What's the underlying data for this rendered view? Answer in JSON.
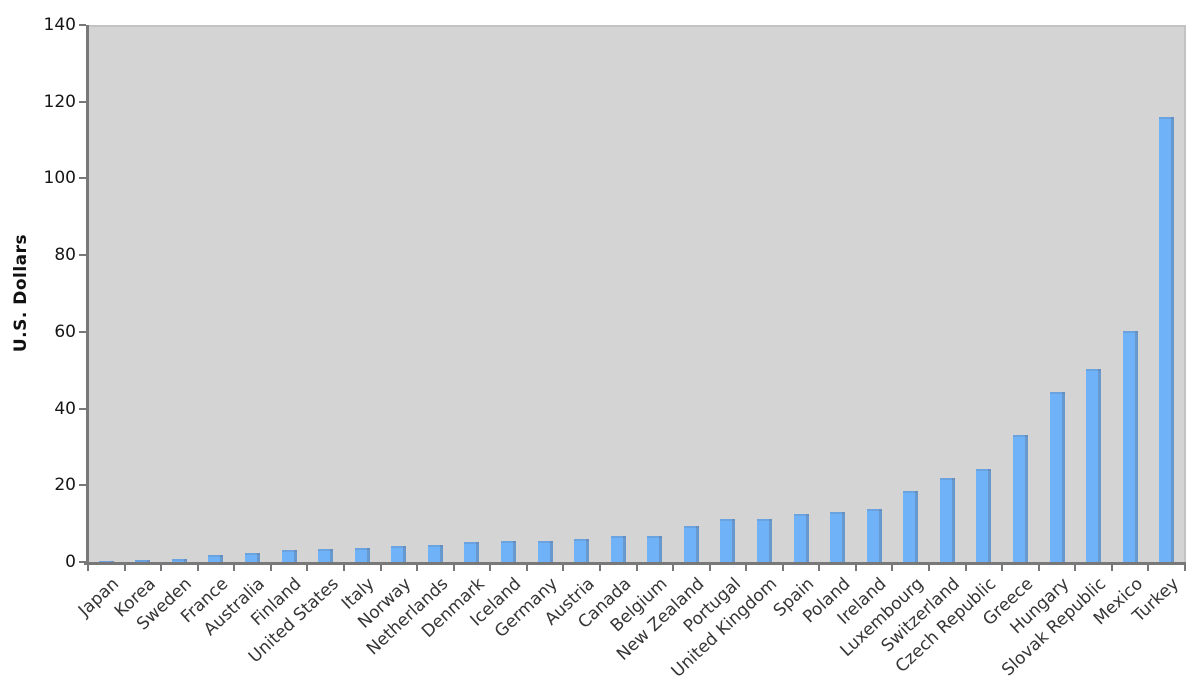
{
  "chart_data": {
    "type": "bar",
    "title": "",
    "xlabel": "",
    "ylabel": "U.S. Dollars",
    "ylim": [
      0,
      140
    ],
    "yticks": [
      0,
      20,
      40,
      60,
      80,
      100,
      120,
      140
    ],
    "grid": false,
    "legend": "none",
    "bar_color": "#6fb2f7",
    "plot_background": "#d4d4d4",
    "axis_color": "#787878",
    "categories": [
      "Japan",
      "Korea",
      "Sweden",
      "France",
      "Australia",
      "Finland",
      "United States",
      "Italy",
      "Norway",
      "Netherlands",
      "Denmark",
      "Iceland",
      "Germany",
      "Austria",
      "Canada",
      "Belgium",
      "New Zealand",
      "Portugal",
      "United Kingdom",
      "Spain",
      "Poland",
      "Ireland",
      "Luxembourg",
      "Switzerland",
      "Czech Republic",
      "Greece",
      "Hungary",
      "Slovak Republic",
      "Mexico",
      "Turkey"
    ],
    "values": [
      0.3,
      0.5,
      0.9,
      1.8,
      2.4,
      3.0,
      3.3,
      3.7,
      4.2,
      4.5,
      5.2,
      5.4,
      5.6,
      6.1,
      6.7,
      6.9,
      9.3,
      11.2,
      11.1,
      12.4,
      13.0,
      13.7,
      18.5,
      22.0,
      24.3,
      33.2,
      44.3,
      50.4,
      60.1,
      116.0
    ]
  }
}
